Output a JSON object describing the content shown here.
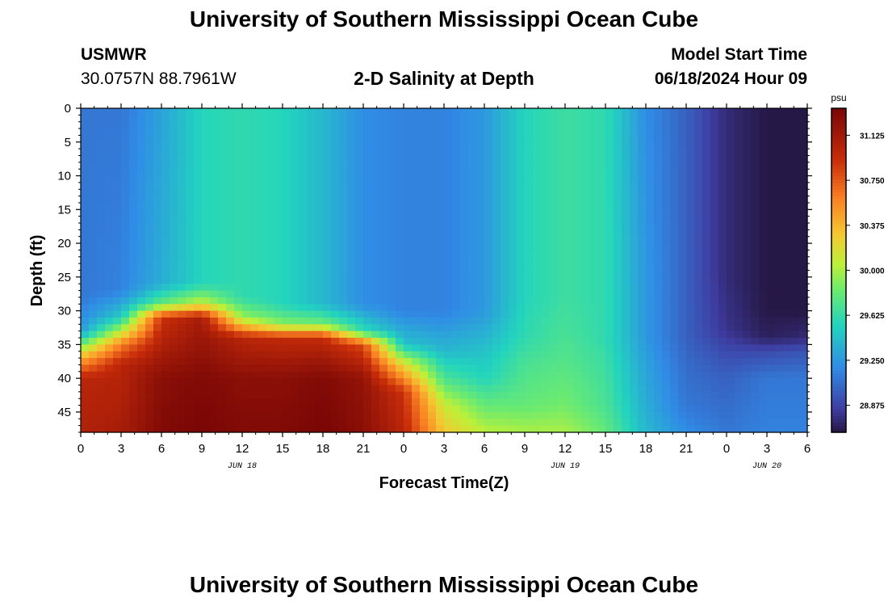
{
  "page": {
    "title": "University of Southern Mississippi Ocean Cube",
    "footer_title": "University of Southern Mississippi Ocean Cube",
    "station": "USMWR",
    "coordinates": "30.0757N  88.7961W",
    "subtitle": "2-D Salinity at Depth",
    "model_start_label": "Model Start Time",
    "model_start_value": "06/18/2024 Hour 09"
  },
  "chart_data": {
    "type": "heatmap",
    "title": "2-D Salinity at Depth",
    "xlabel": "Forecast Time(Z)",
    "ylabel": "Depth (ft)",
    "x_range_hours": [
      0,
      54
    ],
    "y_range": [
      0,
      48
    ],
    "x_tick_labels": [
      "0",
      "3",
      "6",
      "9",
      "12",
      "15",
      "18",
      "21",
      "0",
      "3",
      "6",
      "9",
      "12",
      "15",
      "18",
      "21",
      "0",
      "3",
      "6"
    ],
    "y_ticks": [
      0,
      5,
      10,
      15,
      20,
      25,
      30,
      35,
      40,
      45
    ],
    "day_labels": [
      {
        "hour": 12,
        "label": "JUN 18"
      },
      {
        "hour": 36,
        "label": "JUN 19"
      },
      {
        "hour": 51,
        "label": "JUN 20"
      }
    ],
    "colorbar": {
      "unit": "psu",
      "min": 28.65,
      "max": 31.35,
      "ticks": [
        "31.125",
        "30.750",
        "30.375",
        "30.000",
        "29.625",
        "29.250",
        "28.875"
      ]
    },
    "salinity_columns": [
      {
        "hour": 0,
        "depth": [
          0,
          28,
          33,
          37,
          40,
          48
        ],
        "psu": [
          29.1,
          29.1,
          29.25,
          30.4,
          31.0,
          31.05
        ]
      },
      {
        "hour": 3,
        "depth": [
          0,
          27,
          31,
          35,
          38,
          48
        ],
        "psu": [
          29.1,
          29.15,
          29.5,
          30.6,
          31.0,
          31.1
        ]
      },
      {
        "hour": 6,
        "depth": [
          0,
          26,
          29,
          31,
          40,
          48
        ],
        "psu": [
          29.3,
          29.35,
          29.8,
          30.9,
          31.25,
          31.3
        ]
      },
      {
        "hour": 9,
        "depth": [
          0,
          26,
          29,
          31,
          40,
          48
        ],
        "psu": [
          29.55,
          29.55,
          30.1,
          31.1,
          31.3,
          31.35
        ]
      },
      {
        "hour": 12,
        "depth": [
          0,
          28,
          31,
          34,
          40,
          48
        ],
        "psu": [
          29.6,
          29.6,
          29.95,
          31.0,
          31.25,
          31.3
        ]
      },
      {
        "hour": 15,
        "depth": [
          0,
          29,
          32,
          34,
          40,
          48
        ],
        "psu": [
          29.55,
          29.55,
          29.9,
          30.95,
          31.25,
          31.3
        ]
      },
      {
        "hour": 18,
        "depth": [
          0,
          29,
          32,
          34,
          40,
          48
        ],
        "psu": [
          29.4,
          29.4,
          29.85,
          30.95,
          31.3,
          31.35
        ]
      },
      {
        "hour": 21,
        "depth": [
          0,
          29,
          33,
          35,
          40,
          48
        ],
        "psu": [
          29.2,
          29.2,
          29.6,
          30.8,
          31.2,
          31.25
        ]
      },
      {
        "hour": 24,
        "depth": [
          0,
          30,
          35,
          38,
          42,
          48
        ],
        "psu": [
          29.15,
          29.15,
          29.45,
          30.2,
          30.9,
          31.0
        ]
      },
      {
        "hour": 27,
        "depth": [
          0,
          30,
          36,
          40,
          44,
          48
        ],
        "psu": [
          29.15,
          29.15,
          29.4,
          29.7,
          30.1,
          30.3
        ]
      },
      {
        "hour": 30,
        "depth": [
          0,
          30,
          36,
          40,
          44,
          48
        ],
        "psu": [
          29.25,
          29.25,
          29.45,
          29.55,
          29.8,
          30.05
        ]
      },
      {
        "hour": 33,
        "depth": [
          0,
          28,
          34,
          38,
          44,
          48
        ],
        "psu": [
          29.55,
          29.55,
          29.6,
          29.7,
          29.8,
          30.0
        ]
      },
      {
        "hour": 36,
        "depth": [
          0,
          28,
          34,
          38,
          44,
          48
        ],
        "psu": [
          29.65,
          29.65,
          29.7,
          29.75,
          29.85,
          30.0
        ]
      },
      {
        "hour": 39,
        "depth": [
          0,
          28,
          34,
          38,
          44,
          48
        ],
        "psu": [
          29.6,
          29.6,
          29.6,
          29.65,
          29.7,
          29.8
        ]
      },
      {
        "hour": 42,
        "depth": [
          0,
          28,
          34,
          38,
          44,
          48
        ],
        "psu": [
          29.2,
          29.25,
          29.25,
          29.3,
          29.35,
          29.4
        ]
      },
      {
        "hour": 45,
        "depth": [
          0,
          28,
          34,
          38,
          44,
          48
        ],
        "psu": [
          29.0,
          29.0,
          29.0,
          29.05,
          29.1,
          29.2
        ]
      },
      {
        "hour": 48,
        "depth": [
          0,
          25,
          33,
          36,
          40,
          48
        ],
        "psu": [
          28.75,
          28.75,
          28.8,
          28.9,
          29.0,
          29.1
        ]
      },
      {
        "hour": 51,
        "depth": [
          0,
          30,
          34,
          36,
          40,
          48
        ],
        "psu": [
          28.65,
          28.65,
          28.7,
          28.9,
          29.1,
          29.15
        ]
      },
      {
        "hour": 54,
        "depth": [
          0,
          30,
          34,
          36,
          40,
          48
        ],
        "psu": [
          28.65,
          28.65,
          28.75,
          28.95,
          29.1,
          29.15
        ]
      }
    ]
  }
}
